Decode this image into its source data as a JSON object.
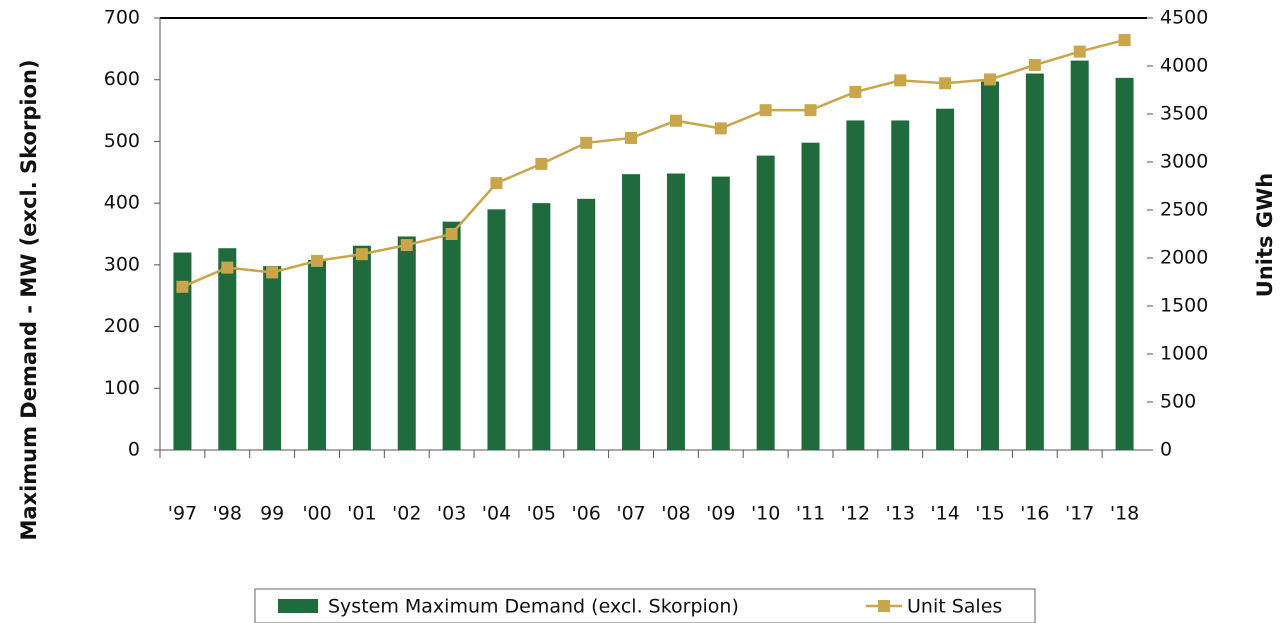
{
  "chart_data": {
    "type": "bar-line",
    "categories": [
      "'97",
      "'98",
      "99",
      "'00",
      "'01",
      "'02",
      "'03",
      "'04",
      "'05",
      "'06",
      "'07",
      "'08",
      "'09",
      "'10",
      "'11",
      "'12",
      "'13",
      "'14",
      "'15",
      "'16",
      "'17",
      "'18"
    ],
    "series": [
      {
        "name": "System Maximum Demand (excl. Skorpion)",
        "type": "bar",
        "color": "#1f6b3d",
        "values": [
          320,
          327,
          298,
          308,
          331,
          346,
          370,
          390,
          400,
          407,
          447,
          448,
          443,
          477,
          498,
          534,
          534,
          553,
          597,
          610,
          631,
          603
        ]
      },
      {
        "name": "Unit Sales",
        "type": "line",
        "axis": "y2",
        "color": "#c9a54c",
        "values": [
          1700,
          1900,
          1850,
          1970,
          2040,
          2135,
          2250,
          2780,
          2980,
          3200,
          3250,
          3430,
          3350,
          3540,
          3540,
          3730,
          3850,
          3820,
          3860,
          4010,
          4150,
          4270
        ]
      }
    ],
    "ylabel": "Maximum Demand - MW (excl. Skorpion)",
    "y2label": "Units GWh",
    "ylim": [
      0,
      700
    ],
    "yticks": [
      0,
      100,
      200,
      300,
      400,
      500,
      600,
      700
    ],
    "y2lim": [
      0,
      4500
    ],
    "y2ticks": [
      0,
      500,
      1000,
      1500,
      2000,
      2500,
      3000,
      3500,
      4000,
      4500
    ],
    "legend": "bottom"
  }
}
